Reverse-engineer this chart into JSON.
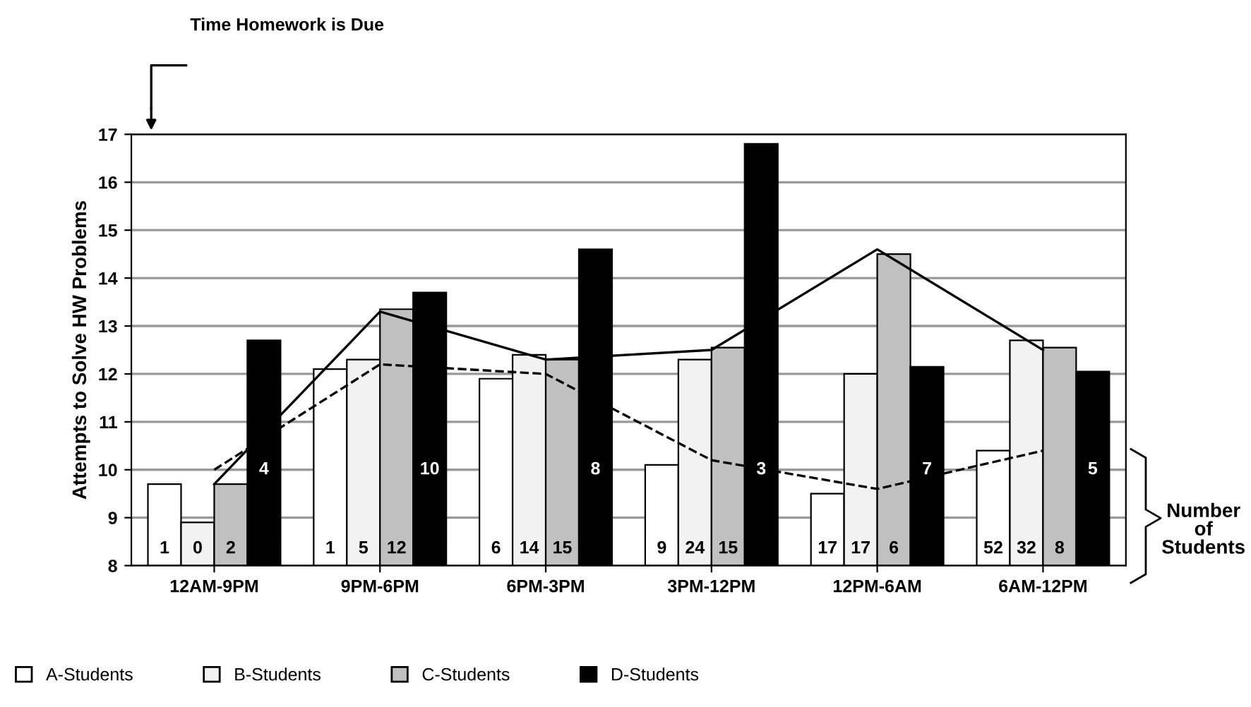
{
  "chart_data": {
    "type": "bar",
    "ylabel": "Attempts to Solve HW Problems",
    "categories": [
      "12AM-9PM",
      "9PM-6PM",
      "6PM-3PM",
      "3PM-12PM",
      "12PM-6AM",
      "6AM-12PM"
    ],
    "series": [
      {
        "name": "A-Students",
        "color": "#ffffff",
        "values": [
          9.7,
          12.1,
          11.9,
          10.1,
          9.5,
          10.4
        ]
      },
      {
        "name": "B-Students",
        "color": "#f2f2f2",
        "values": [
          8.9,
          12.3,
          12.4,
          12.3,
          12.0,
          12.7
        ]
      },
      {
        "name": "C-Students",
        "color": "#c0c0c0",
        "values": [
          9.7,
          13.35,
          12.3,
          12.55,
          14.5,
          12.55
        ]
      },
      {
        "name": "D-Students",
        "color": "#000000",
        "values": [
          12.7,
          13.7,
          14.6,
          16.8,
          12.15,
          12.05
        ]
      },
      {
        "type": "line",
        "color": "#000000",
        "line_style": "dashed",
        "values": [
          10.0,
          12.2,
          12.0,
          10.2,
          9.6,
          10.4
        ]
      },
      {
        "type": "line",
        "color": "#000000",
        "line_style": "solid",
        "values": [
          9.7,
          13.3,
          12.3,
          12.5,
          14.6,
          12.5
        ]
      }
    ],
    "ylim": [
      8,
      17
    ],
    "yticks": [
      8,
      9,
      10,
      11,
      12,
      13,
      14,
      15,
      16,
      17
    ],
    "grid": "y",
    "legend": "bottom",
    "annotations": [
      "Time Homework is Due",
      "Number of Students",
      "1",
      "0",
      "2",
      "4",
      "1",
      "5",
      "12",
      "10",
      "6",
      "14",
      "15",
      "8",
      "9",
      "24",
      "15",
      "3",
      "17",
      "17",
      "6",
      "7",
      "52",
      "32",
      "8",
      "5"
    ]
  }
}
